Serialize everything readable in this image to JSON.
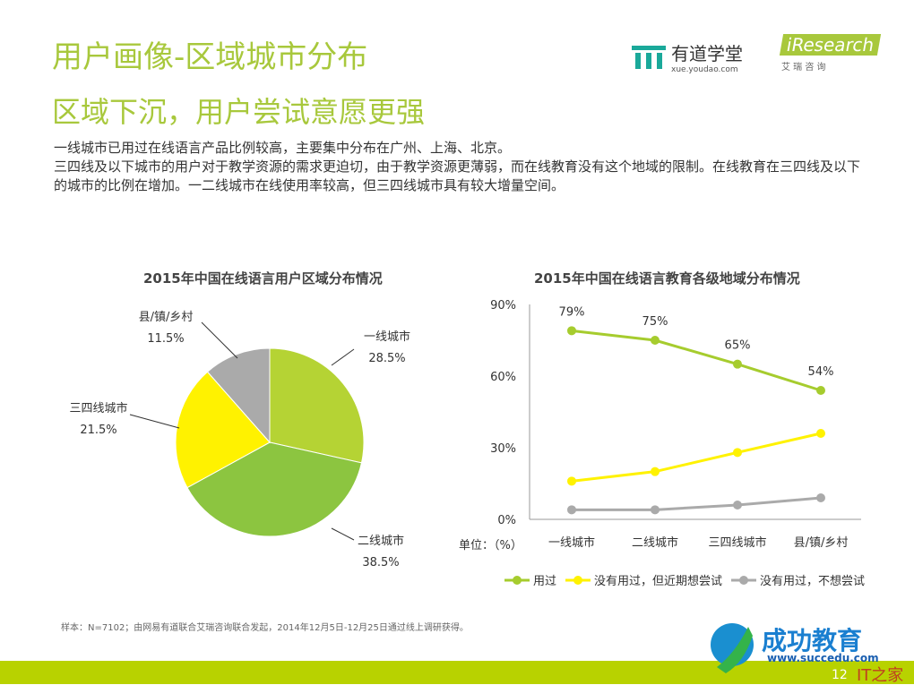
{
  "header": {
    "title": "用户画像-区域城市分布",
    "subtitle": "区域下沉，用户尝试意愿更强",
    "logo1_name": "有道学堂",
    "logo1_url": "xue.youdao.com",
    "logo2_name": "iResearch",
    "logo2_sub": "艾 瑞 咨 询"
  },
  "body": {
    "line1": "一线城市已用过在线语言产品比例较高，主要集中分布在广州、上海、北京。",
    "line2": "三四线及以下城市的用户对于教学资源的需求更迫切，由于教学资源更薄弱，而在线教育没有这个地域的限制。在线教育在三四线及以下的城市的比例在增加。一二线城市在线使用率较高，但三四线城市具有较大增量空间。"
  },
  "chart_data": [
    {
      "type": "pie",
      "title": "2015年中国在线语言用户区域分布情况",
      "slices": [
        {
          "label": "一线城市",
          "value": 28.5,
          "display": "28.5%",
          "color": "#b5d334"
        },
        {
          "label": "二线城市",
          "value": 38.5,
          "display": "38.5%",
          "color": "#8cc540"
        },
        {
          "label": "三四线城市",
          "value": 21.5,
          "display": "21.5%",
          "color": "#fff200"
        },
        {
          "label": "县/镇/乡村",
          "value": 11.5,
          "display": "11.5%",
          "color": "#aaaaaa"
        }
      ]
    },
    {
      "type": "line",
      "title": "2015年中国在线语言教育各级地域分布情况",
      "unit_label": "单位：（%）",
      "categories": [
        "一线城市",
        "二线城市",
        "三四线城市",
        "县/镇/乡村"
      ],
      "ylim": [
        0,
        90
      ],
      "yticks": [
        "0%",
        "30%",
        "60%",
        "90%"
      ],
      "grid": false,
      "legend_position": "bottom",
      "series": [
        {
          "name": "用过",
          "values": [
            79,
            75,
            65,
            54
          ],
          "labels": [
            "79%",
            "75%",
            "65%",
            "54%"
          ],
          "color": "#a6cc2e"
        },
        {
          "name": "没有用过，但近期想尝试",
          "values": [
            16,
            20,
            28,
            36
          ],
          "color": "#fff200"
        },
        {
          "name": "没有用过，不想尝试",
          "values": [
            4,
            4,
            6,
            9
          ],
          "color": "#aaaaaa"
        }
      ]
    }
  ],
  "footer": {
    "note": "样本：N=7102；由网易有道联合艾瑞咨询联合发起，2014年12月5日-12月25日通过线上调研获得。",
    "brand": "成功教育",
    "brand_url": "www.succedu.com",
    "page": "12",
    "watermark": "IT之家"
  }
}
